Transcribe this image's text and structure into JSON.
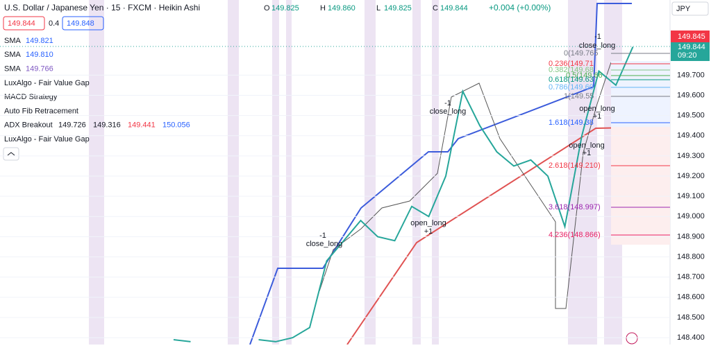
{
  "header": {
    "symbol": "U.S. Dollar / Japanese Yen · 15 · FXCM · Heikin Ashi",
    "ohlc": [
      {
        "label": "O",
        "value": "149.825"
      },
      {
        "label": "H",
        "value": "149.860"
      },
      {
        "label": "L",
        "value": "149.825"
      },
      {
        "label": "C",
        "value": "149.844"
      }
    ],
    "change": "+0.004 (+0.00%)"
  },
  "quote": {
    "bid": "149.844",
    "spread": "0.4",
    "ask": "149.848"
  },
  "indicators": [
    {
      "name": "SMA",
      "values": [
        "149.821"
      ]
    },
    {
      "name": "SMA",
      "values": [
        "149.810"
      ]
    },
    {
      "name": "SMA",
      "values": [
        "149.766"
      ]
    },
    {
      "name": "LuxAlgo - Fair Value Gap",
      "values": []
    },
    {
      "name": "MACD Strategy",
      "values": []
    },
    {
      "name": "Auto Fib Retracement",
      "values": []
    },
    {
      "name": "ADX Breakout",
      "values": [
        "149.726",
        "149.316",
        "149.441",
        "150.056"
      ]
    },
    {
      "name": "LuxAlgo - Fair Value Gap",
      "values": []
    }
  ],
  "currency": "JPY",
  "price_labels": {
    "last": "149.845",
    "close": "149.844",
    "countdown": "09:20"
  },
  "fib_levels": [
    "0(149.765",
    "0.236(149.71",
    "0.382(149.68",
    "0.5(149.66",
    "0.618(149.63",
    "0.786(149.60",
    "1(149.55",
    "1.618(149.38",
    "2.618(149.210)",
    "3.618(148.997)",
    "4.236(148.866)"
  ],
  "trade_labels": [
    "-1",
    "close_long",
    "-1",
    "close_long",
    "-1",
    "close_long",
    "open_long",
    "+1",
    "open_long",
    "+1",
    "open_long",
    "+1"
  ],
  "chart_data": {
    "type": "line",
    "color": "#26a69a",
    "values": [
      null,
      null,
      null,
      null,
      null,
      null,
      null,
      null,
      null,
      null,
      148.39,
      148.38,
      null,
      null,
      null,
      148.39,
      148.38,
      148.4,
      148.45,
      148.78,
      148.88,
      148.98,
      148.9,
      148.88,
      149.05,
      149.0,
      149.2,
      149.62,
      149.45,
      149.32,
      149.25,
      149.28,
      149.2,
      148.95,
      149.4,
      149.72,
      149.65,
      149.84
    ],
    "ylim": [
      148.366,
      150.072
    ],
    "yticks": [
      {
        "value": 149.7,
        "label": "149.700"
      },
      {
        "value": 149.6,
        "label": "149.600"
      },
      {
        "value": 149.5,
        "label": "149.500"
      },
      {
        "value": 149.4,
        "label": "149.400"
      },
      {
        "value": 149.3,
        "label": "149.300"
      },
      {
        "value": 149.2,
        "label": "149.200"
      },
      {
        "value": 149.1,
        "label": "149.100"
      },
      {
        "value": 149.0,
        "label": "149.000"
      },
      {
        "value": 148.9,
        "label": "148.900"
      },
      {
        "value": 148.8,
        "label": "148.800"
      },
      {
        "value": 148.7,
        "label": "148.700"
      },
      {
        "value": 148.6,
        "label": "148.600"
      },
      {
        "value": 148.5,
        "label": "148.500"
      },
      {
        "value": 148.4,
        "label": "148.400"
      }
    ]
  }
}
